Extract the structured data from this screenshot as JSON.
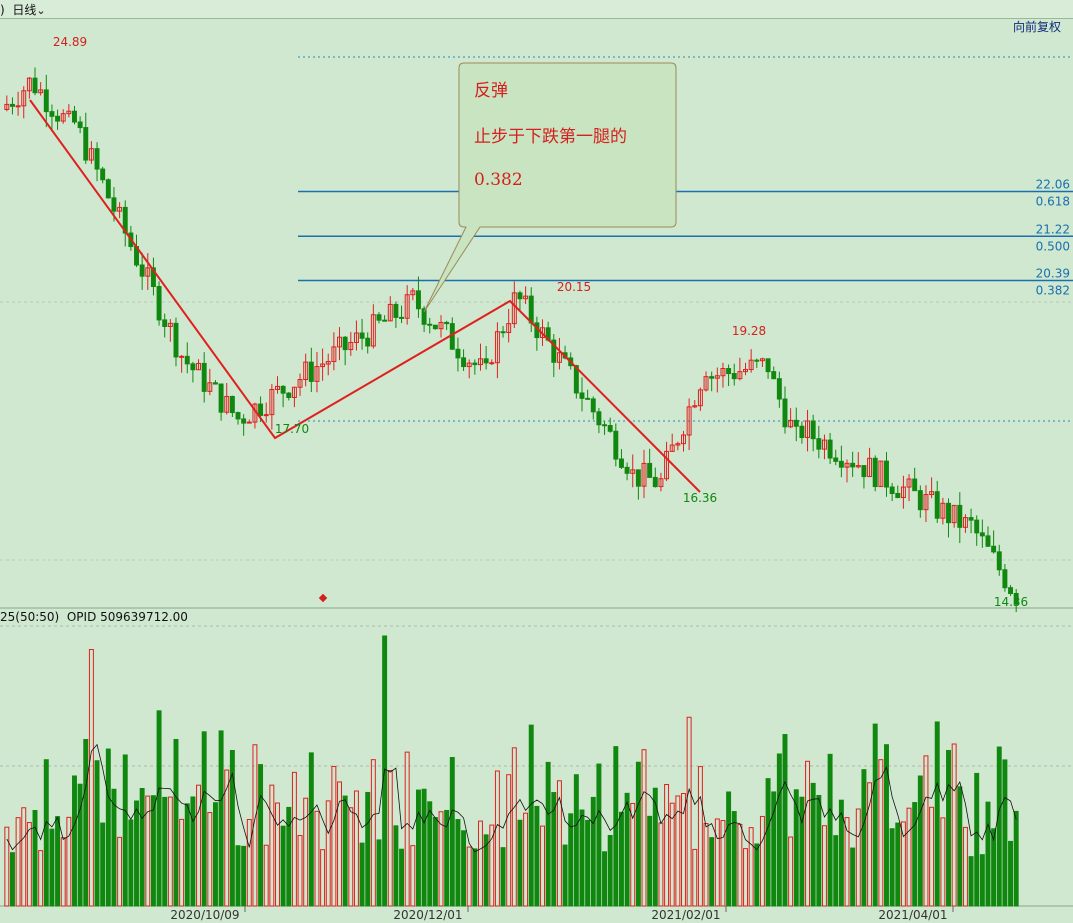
{
  "header": {
    "period_prefix": ")",
    "period_label": "日线",
    "period_dropdown_icon": "chevron-down-icon",
    "adjust_label": "向前复权"
  },
  "callout": {
    "lines": [
      "反弹",
      "止步于下跌第一腿的",
      "0.382"
    ]
  },
  "colors": {
    "up": "#e02020",
    "down": "#108810",
    "fib": "#1a6fb0",
    "wave": "#e02020",
    "bg": "#cfe8cf"
  },
  "volume_panel": {
    "prefix": "25(50:50)",
    "label": "OPID 509639712.00"
  },
  "chart_data": {
    "type": "candlestick",
    "x_tick_labels": [
      "2020/10/09",
      "2020/12/01",
      "2021/02/01",
      "2021/04/01"
    ],
    "price_extremes": [
      {
        "label": "24.89",
        "type": "high"
      },
      {
        "label": "17.70",
        "type": "low"
      },
      {
        "label": "20.15",
        "type": "high"
      },
      {
        "label": "16.36",
        "type": "low"
      },
      {
        "label": "19.28",
        "type": "high"
      },
      {
        "label": "14.36",
        "type": "low"
      }
    ],
    "fibonacci_levels": [
      {
        "price": "22.06",
        "ratio": "0.618"
      },
      {
        "price": "21.22",
        "ratio": "0.500"
      },
      {
        "price": "20.39",
        "ratio": "0.382"
      }
    ],
    "wave_points": [
      [
        24.4,
        0
      ],
      [
        17.6,
        1
      ],
      [
        20.0,
        2
      ],
      [
        16.3,
        3
      ]
    ],
    "trend": {
      "open_start": 23.6,
      "segments": [
        {
          "days": 5,
          "to": 24.1
        },
        {
          "days": 7,
          "to": 23.3
        },
        {
          "days": 20,
          "to": 19.0
        },
        {
          "days": 10,
          "to": 17.8
        },
        {
          "days": 30,
          "to": 19.9
        },
        {
          "days": 14,
          "to": 18.6
        },
        {
          "days": 5,
          "to": 20.0
        },
        {
          "days": 20,
          "to": 17.0
        },
        {
          "days": 6,
          "to": 16.6
        },
        {
          "days": 8,
          "to": 18.8
        },
        {
          "days": 11,
          "to": 18.8
        },
        {
          "days": 5,
          "to": 17.4
        },
        {
          "days": 30,
          "to": 15.8
        },
        {
          "days": 9,
          "to": 14.5
        }
      ]
    }
  }
}
